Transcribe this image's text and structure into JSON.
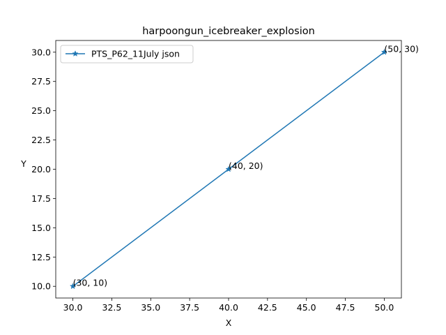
{
  "chart_data": {
    "type": "line",
    "title": "harpoongun_icebreaker_explosion",
    "xlabel": "X",
    "ylabel": "Y",
    "xlim": [
      28.9,
      51.1
    ],
    "ylim": [
      9.0,
      31.0
    ],
    "xticks": [
      30.0,
      32.5,
      35.0,
      37.5,
      40.0,
      42.5,
      45.0,
      47.5,
      50.0
    ],
    "yticks": [
      10.0,
      12.5,
      15.0,
      17.5,
      20.0,
      22.5,
      25.0,
      27.5,
      30.0
    ],
    "grid": false,
    "legend_position": "top-left",
    "series": [
      {
        "name": "PTS_P62_11July json",
        "color": "#1f77b4",
        "marker": "star",
        "x": [
          30,
          40,
          50
        ],
        "y": [
          10,
          20,
          30
        ],
        "labels": [
          "(30, 10)",
          "(40, 20)",
          "(50, 30)"
        ]
      }
    ]
  }
}
